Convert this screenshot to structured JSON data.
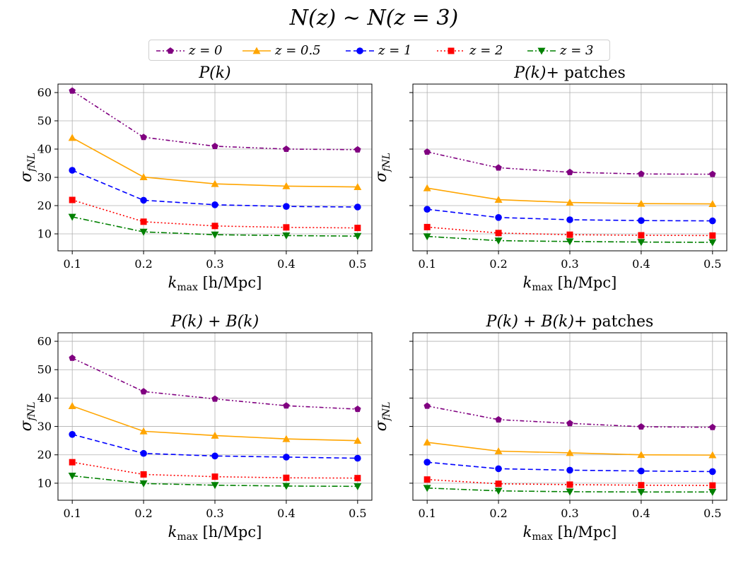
{
  "suptitle": "N(z) ∼ N(z = 3)",
  "legend": [
    {
      "label": "z = 0",
      "color": "#800080",
      "marker": "pentagon",
      "dash": "dashdotdot"
    },
    {
      "label": "z = 0.5",
      "color": "#FFA500",
      "marker": "triangle-up",
      "dash": "solid"
    },
    {
      "label": "z = 1",
      "color": "#0000FF",
      "marker": "circle",
      "dash": "dashed"
    },
    {
      "label": "z = 2",
      "color": "#FF0000",
      "marker": "square",
      "dash": "dotted"
    },
    {
      "label": "z = 3",
      "color": "#008000",
      "marker": "triangle-down",
      "dash": "dashdot"
    }
  ],
  "chart_data": [
    {
      "type": "line",
      "title": "P(k)",
      "xlabel": "k_max [h/Mpc]",
      "ylabel": "σ_fNL",
      "x": [
        0.1,
        0.2,
        0.3,
        0.4,
        0.5
      ],
      "xticks": [
        "0.1",
        "0.2",
        "0.3",
        "0.4",
        "0.5"
      ],
      "yticks": [
        "10",
        "20",
        "30",
        "40",
        "50",
        "60"
      ],
      "ylim": [
        4,
        63
      ],
      "grid": true,
      "series": [
        {
          "name": "z = 0",
          "values": [
            60.6,
            44.2,
            41.0,
            40.0,
            39.8
          ]
        },
        {
          "name": "z = 0.5",
          "values": [
            44.0,
            30.1,
            27.7,
            26.9,
            26.6
          ]
        },
        {
          "name": "z = 1",
          "values": [
            32.5,
            21.9,
            20.3,
            19.7,
            19.5
          ]
        },
        {
          "name": "z = 2",
          "values": [
            22.0,
            14.3,
            12.8,
            12.3,
            12.1
          ]
        },
        {
          "name": "z = 3",
          "values": [
            16.0,
            10.7,
            9.7,
            9.4,
            9.2
          ]
        }
      ]
    },
    {
      "type": "line",
      "title": "P(k)+ patches",
      "xlabel": "k_max [h/Mpc]",
      "ylabel": "σ_fNL",
      "x": [
        0.1,
        0.2,
        0.3,
        0.4,
        0.5
      ],
      "xticks": [
        "0.1",
        "0.2",
        "0.3",
        "0.4",
        "0.5"
      ],
      "yticks": [
        "",
        "",
        "",
        "",
        "",
        ""
      ],
      "ylim": [
        4,
        63
      ],
      "grid": true,
      "series": [
        {
          "name": "z = 0",
          "values": [
            39.0,
            33.4,
            31.8,
            31.2,
            31.1
          ]
        },
        {
          "name": "z = 0.5",
          "values": [
            26.2,
            22.1,
            21.1,
            20.7,
            20.6
          ]
        },
        {
          "name": "z = 1",
          "values": [
            18.7,
            15.8,
            15.0,
            14.7,
            14.6
          ]
        },
        {
          "name": "z = 2",
          "values": [
            12.4,
            10.3,
            9.7,
            9.5,
            9.4
          ]
        },
        {
          "name": "z = 3",
          "values": [
            9.1,
            7.6,
            7.3,
            7.1,
            7.0
          ]
        }
      ]
    },
    {
      "type": "line",
      "title": "P(k) + B(k)",
      "xlabel": "k_max [h/Mpc]",
      "ylabel": "σ_fNL",
      "x": [
        0.1,
        0.2,
        0.3,
        0.4,
        0.5
      ],
      "xticks": [
        "0.1",
        "0.2",
        "0.3",
        "0.4",
        "0.5"
      ],
      "yticks": [
        "10",
        "20",
        "30",
        "40",
        "50",
        "60"
      ],
      "ylim": [
        4,
        63
      ],
      "grid": true,
      "series": [
        {
          "name": "z = 0",
          "values": [
            54.1,
            42.3,
            39.7,
            37.3,
            36.1
          ]
        },
        {
          "name": "z = 0.5",
          "values": [
            37.2,
            28.3,
            26.8,
            25.6,
            25.0
          ]
        },
        {
          "name": "z = 1",
          "values": [
            27.2,
            20.5,
            19.6,
            19.2,
            18.8
          ]
        },
        {
          "name": "z = 2",
          "values": [
            17.4,
            13.1,
            12.3,
            11.9,
            11.8
          ]
        },
        {
          "name": "z = 3",
          "values": [
            12.6,
            9.9,
            9.3,
            9.0,
            8.9
          ]
        }
      ]
    },
    {
      "type": "line",
      "title": "P(k) + B(k)+ patches",
      "xlabel": "k_max [h/Mpc]",
      "ylabel": "σ_fNL",
      "x": [
        0.1,
        0.2,
        0.3,
        0.4,
        0.5
      ],
      "xticks": [
        "0.1",
        "0.2",
        "0.3",
        "0.4",
        "0.5"
      ],
      "yticks": [
        "",
        "",
        "",
        "",
        "",
        ""
      ],
      "ylim": [
        4,
        63
      ],
      "grid": true,
      "series": [
        {
          "name": "z = 0",
          "values": [
            37.2,
            32.4,
            31.1,
            29.9,
            29.7
          ]
        },
        {
          "name": "z = 0.5",
          "values": [
            24.4,
            21.3,
            20.7,
            20.0,
            19.9
          ]
        },
        {
          "name": "z = 1",
          "values": [
            17.4,
            15.1,
            14.6,
            14.3,
            14.1
          ]
        },
        {
          "name": "z = 2",
          "values": [
            11.3,
            9.8,
            9.5,
            9.3,
            9.2
          ]
        },
        {
          "name": "z = 3",
          "values": [
            8.3,
            7.3,
            7.0,
            6.9,
            6.9
          ]
        }
      ]
    }
  ]
}
